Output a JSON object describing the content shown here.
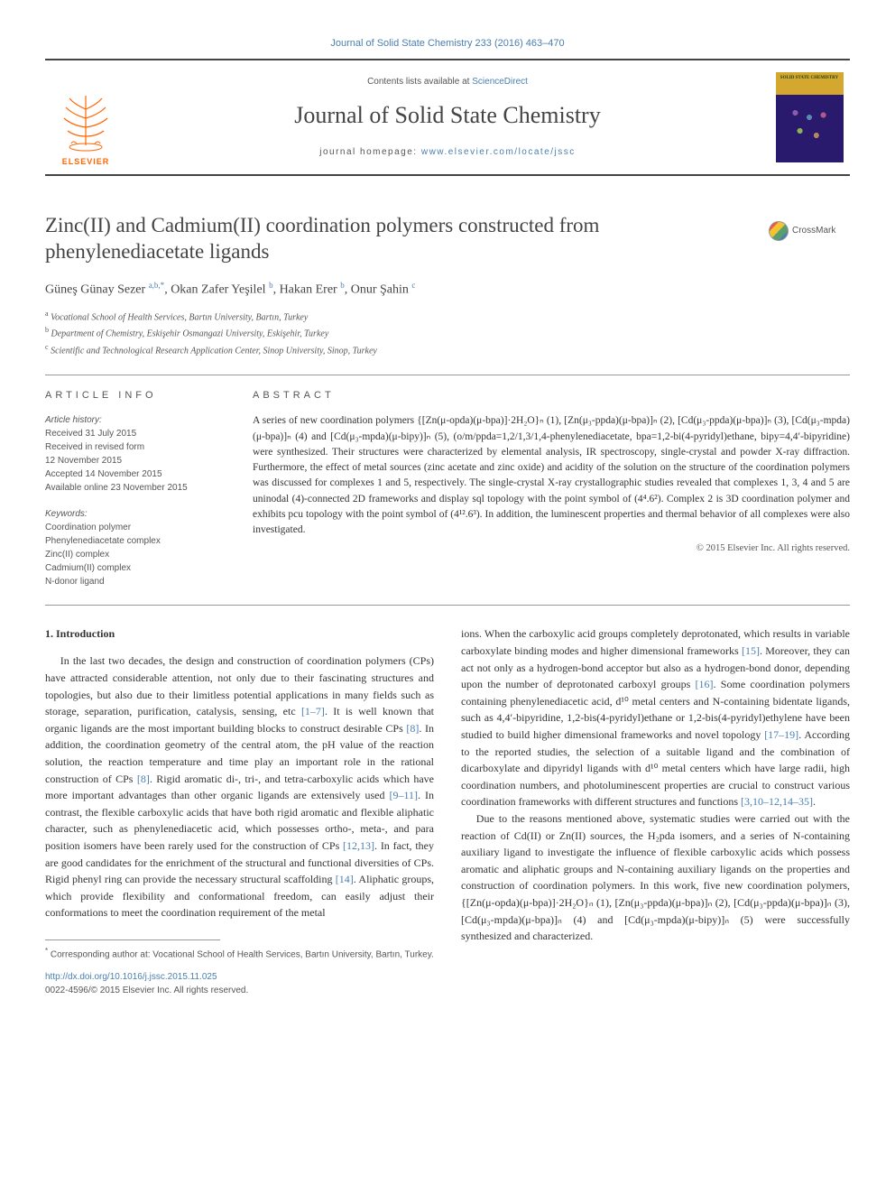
{
  "top_link": "Journal of Solid State Chemistry 233 (2016) 463–470",
  "header": {
    "contents_pre": "Contents lists available at ",
    "contents_link": "ScienceDirect",
    "journal": "Journal of Solid State Chemistry",
    "homepage_pre": "journal homepage: ",
    "homepage_link": "www.elsevier.com/locate/jssc",
    "elsevier": "ELSEVIER",
    "cover_title": "SOLID STATE CHEMISTRY"
  },
  "title": "Zinc(II) and Cadmium(II) coordination polymers constructed from phenylenediacetate ligands",
  "crossmark": "CrossMark",
  "authors_html": "Güneş Günay Sezer <sup>a,b,*</sup>, Okan Zafer Yeşilel <sup>b</sup>, Hakan Erer <sup>b</sup>, Onur Şahin <sup>c</sup>",
  "affiliations": [
    "a Vocational School of Health Services, Bartın University, Bartın, Turkey",
    "b Department of Chemistry, Eskişehir Osmangazi University, Eskişehir, Turkey",
    "c Scientific and Technological Research Application Center, Sinop University, Sinop, Turkey"
  ],
  "info_heading": "ARTICLE INFO",
  "abstract_heading": "ABSTRACT",
  "history": {
    "label": "Article history:",
    "lines": [
      "Received 31 July 2015",
      "Received in revised form",
      "12 November 2015",
      "Accepted 14 November 2015",
      "Available online 23 November 2015"
    ]
  },
  "keywords": {
    "label": "Keywords:",
    "items": [
      "Coordination polymer",
      "Phenylenediacetate complex",
      "Zinc(II) complex",
      "Cadmium(II) complex",
      "N-donor ligand"
    ]
  },
  "abstract": "A series of new coordination polymers {[Zn(μ-opda)(μ-bpa)]·2H₂O}ₙ (1), [Zn(μ₃-ppda)(μ-bpa)]ₙ (2), [Cd(μ₃-ppda)(μ-bpa)]ₙ (3), [Cd(μ₃-mpda)(μ-bpa)]ₙ (4) and [Cd(μ₃-mpda)(μ-bipy)]ₙ (5), (o/m/ppda=1,2/1,3/1,4-phenylenediacetate, bpa=1,2-bi(4-pyridyl)ethane, bipy=4,4′-bipyridine) were synthesized. Their structures were characterized by elemental analysis, IR spectroscopy, single-crystal and powder X-ray diffraction. Furthermore, the effect of metal sources (zinc acetate and zinc oxide) and acidity of the solution on the structure of the coordination polymers was discussed for complexes 1 and 5, respectively. The single-crystal X-ray crystallographic studies revealed that complexes 1, 3, 4 and 5 are uninodal (4)-connected 2D frameworks and display sql topology with the point symbol of (4⁴.6²). Complex 2 is 3D coordination polymer and exhibits pcu topology with the point symbol of (4¹².6³). In addition, the luminescent properties and thermal behavior of all complexes were also investigated.",
  "copyright": "© 2015 Elsevier Inc. All rights reserved.",
  "intro_heading": "1.  Introduction",
  "col1": "In the last two decades, the design and construction of coordination polymers (CPs) have attracted considerable attention, not only due to their fascinating structures and topologies, but also due to their limitless potential applications in many fields such as storage, separation, purification, catalysis, sensing, etc [1–7]. It is well known that organic ligands are the most important building blocks to construct desirable CPs [8]. In addition, the coordination geometry of the central atom, the pH value of the reaction solution, the reaction temperature and time play an important role in the rational construction of CPs [8]. Rigid aromatic di-, tri-, and tetra-carboxylic acids which have more important advantages than other organic ligands are extensively used [9–11]. In contrast, the flexible carboxylic acids that have both rigid aromatic and flexible aliphatic character, such as phenylenediacetic acid, which possesses ortho-, meta-, and para position isomers have been rarely used for the construction of CPs [12,13]. In fact, they are good candidates for the enrichment of the structural and functional diversities of CPs. Rigid phenyl ring can provide the necessary structural scaffolding [14]. Aliphatic groups, which provide flexibility and conformational freedom, can easily adjust their conformations to meet the coordination requirement of the metal",
  "col2a": "ions. When the carboxylic acid groups completely deprotonated, which results in variable carboxylate binding modes and higher dimensional frameworks [15]. Moreover, they can act not only as a hydrogen-bond acceptor but also as a hydrogen-bond donor, depending upon the number of deprotonated carboxyl groups [16]. Some coordination polymers containing phenylenediacetic acid, d¹⁰ metal centers and N-containing bidentate ligands, such as 4,4′-bipyridine, 1,2-bis(4-pyridyl)ethane or 1,2-bis(4-pyridyl)ethylene have been studied to build higher dimensional frameworks and novel topology [17–19]. According to the reported studies, the selection of a suitable ligand and the combination of dicarboxylate and dipyridyl ligands with d¹⁰ metal centers which have large radii, high coordination numbers, and photoluminescent properties are crucial to construct various coordination frameworks with different structures and functions [3,10–12,14–35].",
  "col2b": "Due to the reasons mentioned above, systematic studies were carried out with the reaction of Cd(II) or Zn(II) sources, the H₂pda isomers, and a series of N-containing auxiliary ligand to investigate the influence of flexible carboxylic acids which possess aromatic and aliphatic groups and N-containing auxiliary ligands on the properties and construction of coordination polymers. In this work, five new coordination polymers, {[Zn(μ-opda)(μ-bpa)]·2H₂O}ₙ (1), [Zn(μ₃-ppda)(μ-bpa)]ₙ (2), [Cd(μ₃-ppda)(μ-bpa)]ₙ (3), [Cd(μ₃-mpda)(μ-bpa)]ₙ (4) and [Cd(μ₃-mpda)(μ-bipy)]ₙ (5) were successfully synthesized and characterized.",
  "footnote": "* Corresponding author at: Vocational School of Health Services, Bartın University, Bartın, Turkey.",
  "doi": "http://dx.doi.org/10.1016/j.jssc.2015.11.025",
  "issn": "0022-4596/© 2015 Elsevier Inc. All rights reserved.",
  "colors": {
    "link": "#4a7fb0",
    "orange": "#ff6600",
    "border": "#444444",
    "text": "#333333",
    "muted": "#555555"
  }
}
